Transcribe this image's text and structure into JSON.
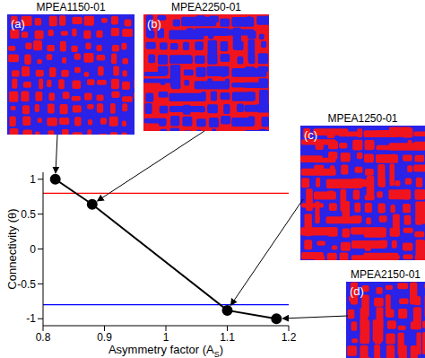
{
  "chart_data": {
    "type": "line",
    "x_label": {
      "text": "Asymmetry factor (A",
      "subscript": "S",
      "suffix": ")"
    },
    "y_label": "Connectivity (θ)",
    "x": [
      0.82,
      0.88,
      1.1,
      1.18
    ],
    "values": [
      1,
      0.64,
      -0.88,
      -1
    ],
    "color": "#000000",
    "marker": "circle",
    "xlim": [
      0.8,
      1.2
    ],
    "xticks": [
      0.8,
      0.9,
      1,
      1.1,
      1.2
    ],
    "ylim": [
      -1.1,
      1.1
    ],
    "yticks": [
      -1,
      -0.5,
      0,
      0.5,
      1
    ],
    "reference_lines": [
      {
        "value": 0.8,
        "color": "#ff0000"
      },
      {
        "value": -0.8,
        "color": "#0000ff"
      }
    ]
  },
  "images": [
    {
      "label": "(a)",
      "title": "MPEA1150-01"
    },
    {
      "label": "(b)",
      "title": "MPEA2250-01"
    },
    {
      "label": "(c)",
      "title": "MPEA1250-01"
    },
    {
      "label": "(d)",
      "title": "MPEA2150-01"
    }
  ]
}
